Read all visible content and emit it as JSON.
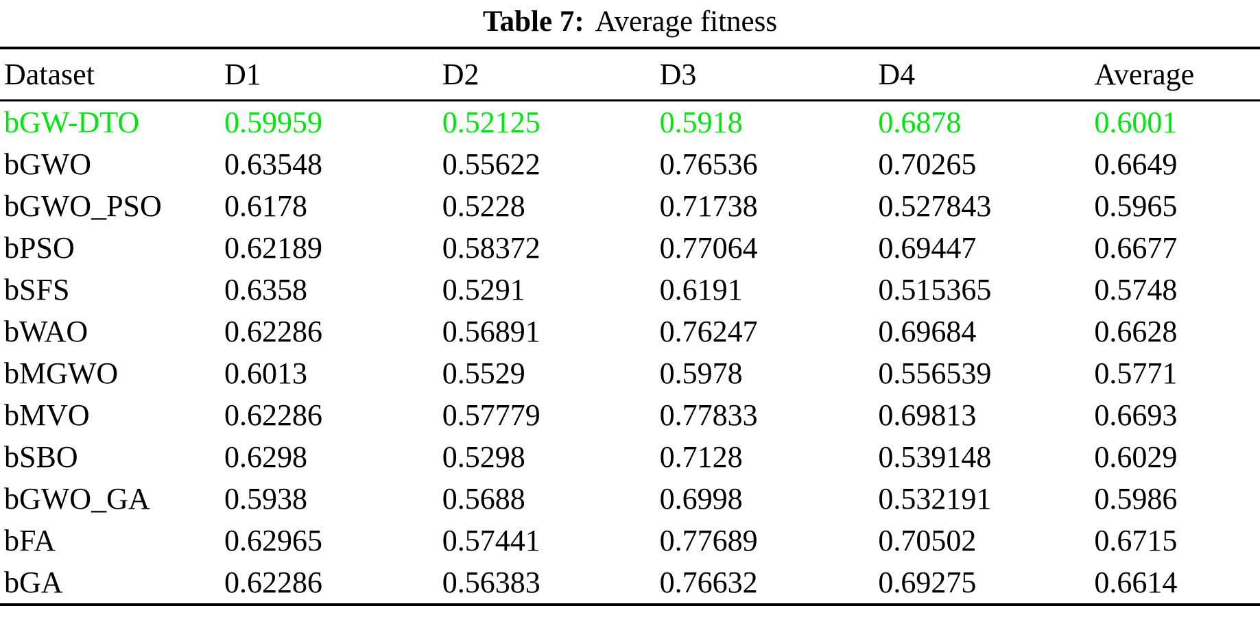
{
  "title": {
    "label": "Table 7:",
    "text": "Average fitness"
  },
  "table": {
    "columns": [
      "Dataset",
      "D1",
      "D2",
      "D3",
      "D4",
      "Average"
    ],
    "highlight_color": "#00e60e",
    "text_color": "#000000",
    "rows": [
      {
        "label": "bGW-DTO",
        "values": [
          "0.59959",
          "0.52125",
          "0.5918",
          "0.6878",
          "0.6001"
        ],
        "highlight": true
      },
      {
        "label": "bGWO",
        "values": [
          "0.63548",
          "0.55622",
          "0.76536",
          "0.70265",
          "0.6649"
        ],
        "highlight": false
      },
      {
        "label": "bGWO_PSO",
        "values": [
          "0.6178",
          "0.5228",
          "0.71738",
          "0.527843",
          "0.5965"
        ],
        "highlight": false
      },
      {
        "label": "bPSO",
        "values": [
          "0.62189",
          "0.58372",
          "0.77064",
          "0.69447",
          "0.6677"
        ],
        "highlight": false
      },
      {
        "label": "bSFS",
        "values": [
          "0.6358",
          "0.5291",
          "0.6191",
          "0.515365",
          "0.5748"
        ],
        "highlight": false
      },
      {
        "label": "bWAO",
        "values": [
          "0.62286",
          "0.56891",
          "0.76247",
          "0.69684",
          "0.6628"
        ],
        "highlight": false
      },
      {
        "label": "bMGWO",
        "values": [
          "0.6013",
          "0.5529",
          "0.5978",
          "0.556539",
          "0.5771"
        ],
        "highlight": false
      },
      {
        "label": "bMVO",
        "values": [
          "0.62286",
          "0.57779",
          "0.77833",
          "0.69813",
          "0.6693"
        ],
        "highlight": false
      },
      {
        "label": "bSBO",
        "values": [
          "0.6298",
          "0.5298",
          "0.7128",
          "0.539148",
          "0.6029"
        ],
        "highlight": false
      },
      {
        "label": "bGWO_GA",
        "values": [
          "0.5938",
          "0.5688",
          "0.6998",
          "0.532191",
          "0.5986"
        ],
        "highlight": false
      },
      {
        "label": "bFA",
        "values": [
          "0.62965",
          "0.57441",
          "0.77689",
          "0.70502",
          "0.6715"
        ],
        "highlight": false
      },
      {
        "label": "bGA",
        "values": [
          "0.62286",
          "0.56383",
          "0.76632",
          "0.69275",
          "0.6614"
        ],
        "highlight": false
      }
    ]
  }
}
